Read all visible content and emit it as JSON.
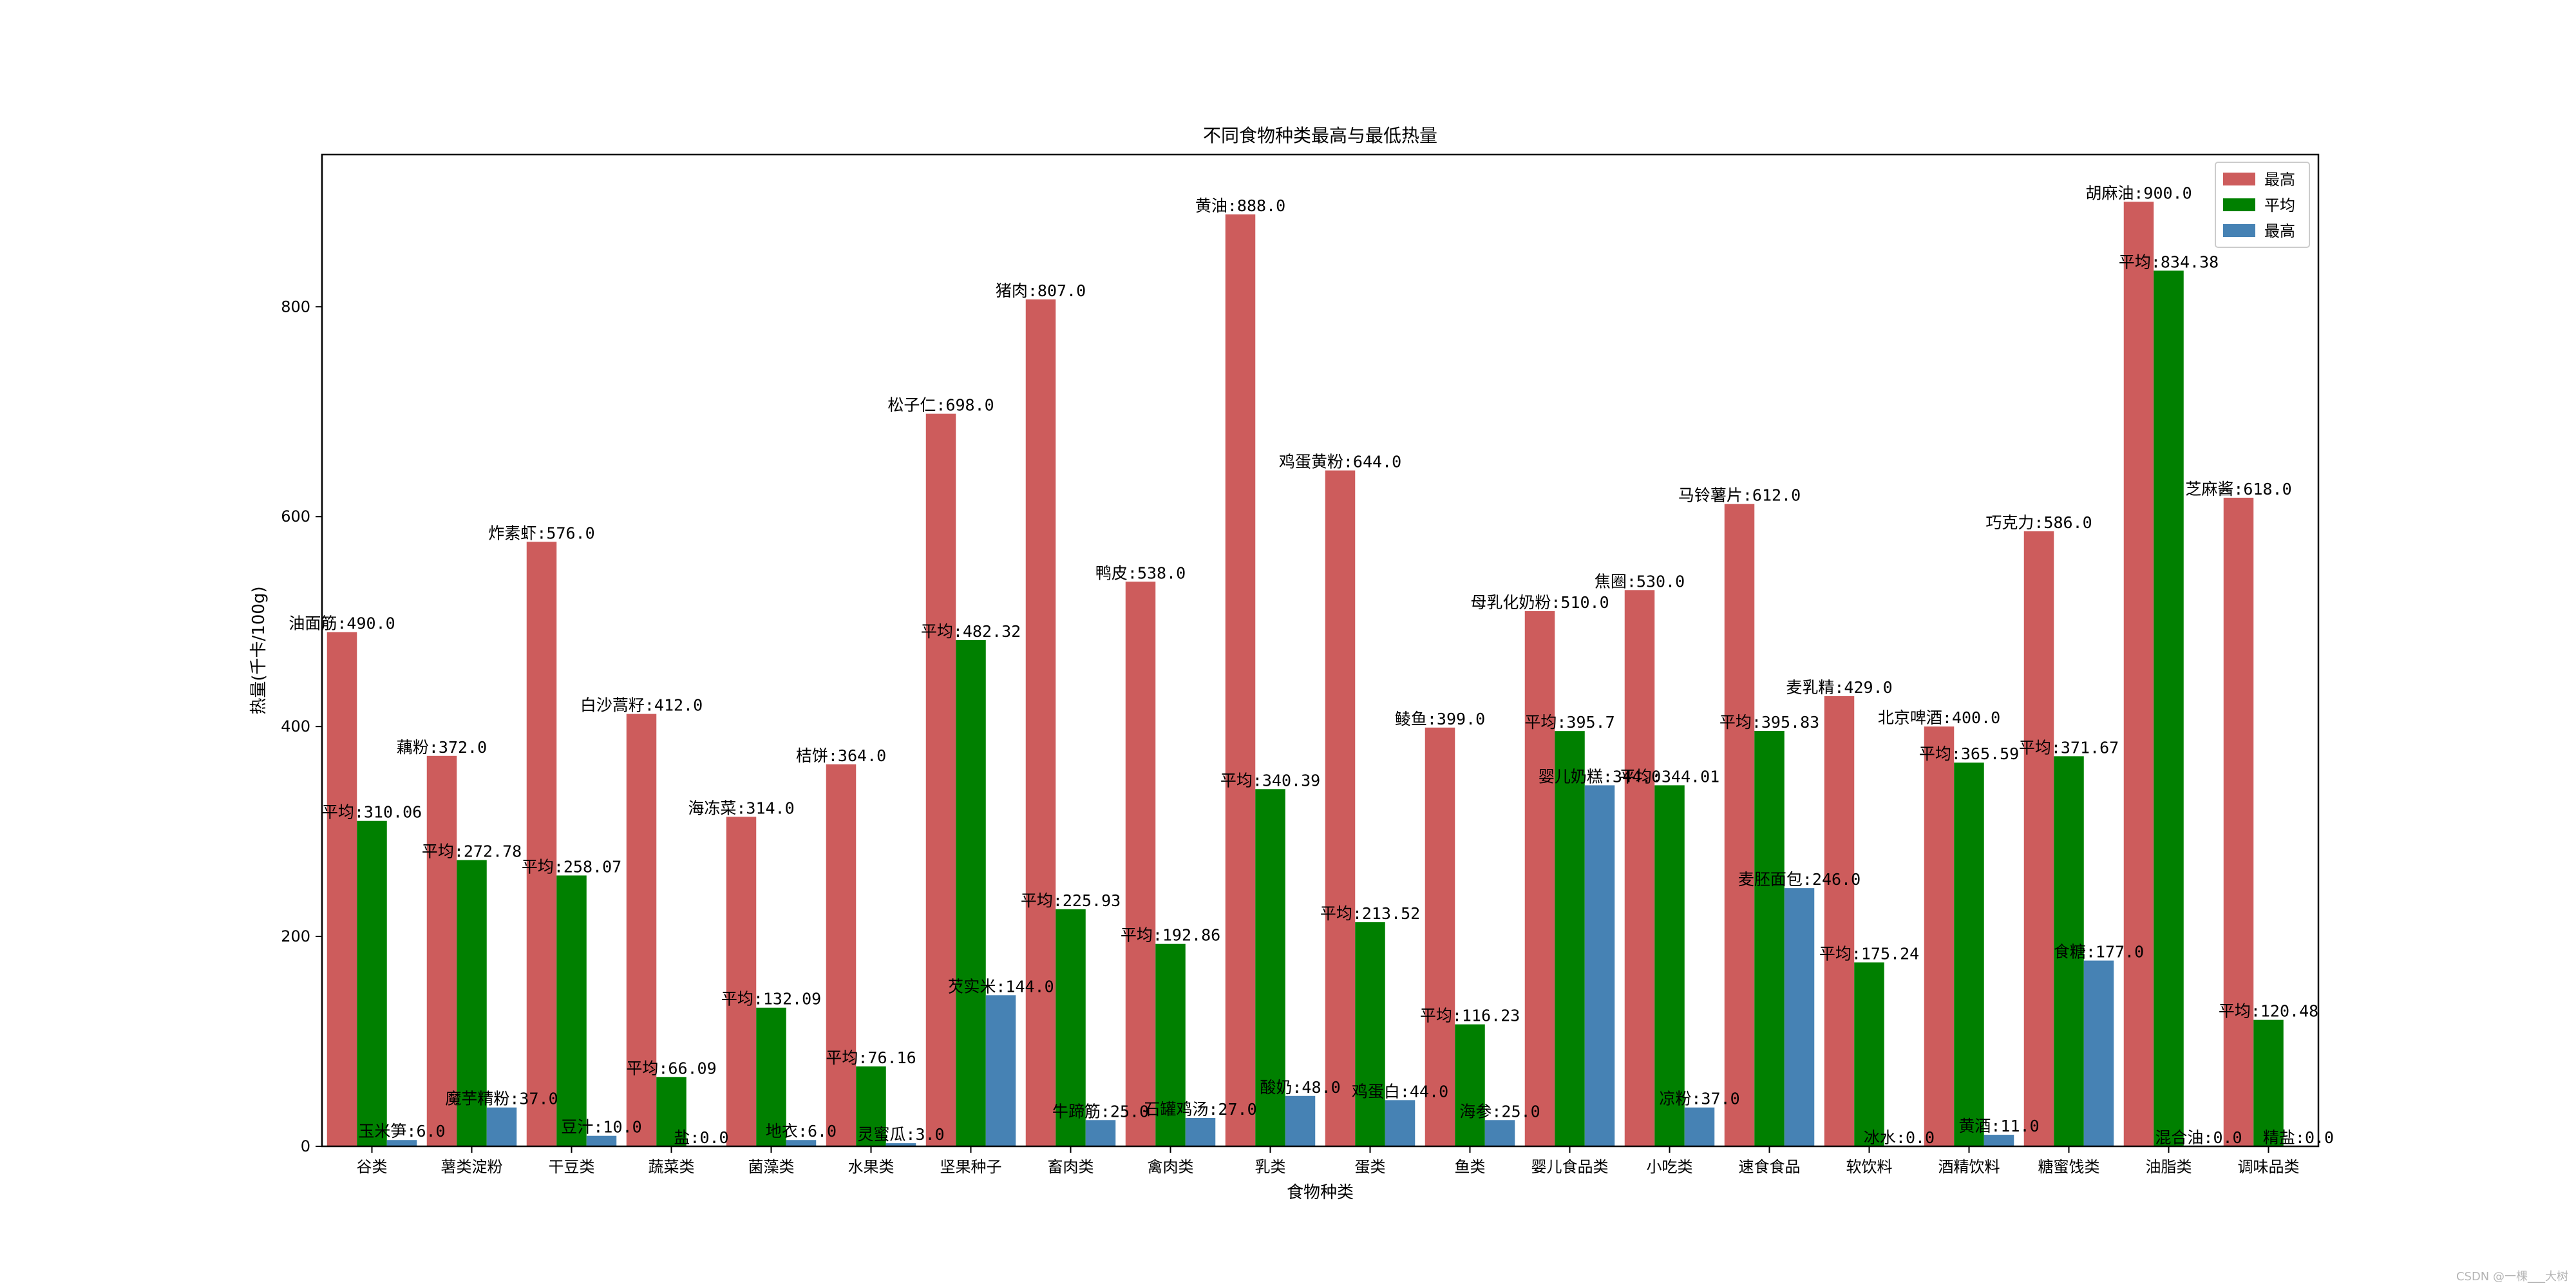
{
  "chart_data": {
    "type": "bar",
    "title": "不同食物种类最高与最低热量",
    "xlabel": "食物种类",
    "ylabel": "热量(千卡/100g)",
    "ylim": [
      0,
      945
    ],
    "yticks": [
      0,
      200,
      400,
      600,
      800
    ],
    "grid": false,
    "legend_position": "top-right",
    "categories": [
      "谷类",
      "薯类淀粉",
      "干豆类",
      "蔬菜类",
      "菌藻类",
      "水果类",
      "坚果种子",
      "畜肉类",
      "禽肉类",
      "乳类",
      "蛋类",
      "鱼类",
      "婴儿食品类",
      "小吃类",
      "速食食品",
      "软饮料",
      "酒精饮料",
      "糖蜜饯类",
      "油脂类",
      "调味品类"
    ],
    "series": [
      {
        "name": "最高",
        "color": "#cd5c5c",
        "values": [
          490.0,
          372.0,
          576.0,
          412.0,
          314.0,
          364.0,
          698.0,
          807.0,
          538.0,
          888.0,
          644.0,
          399.0,
          510.0,
          530.0,
          612.0,
          429.0,
          400.0,
          586.0,
          900.0,
          618.0
        ],
        "labels": [
          "油面筋:490.0",
          "藕粉:372.0",
          "炸素虾:576.0",
          "白沙蒿籽:412.0",
          "海冻菜:314.0",
          "桔饼:364.0",
          "松子仁:698.0",
          "猪肉:807.0",
          "鸭皮:538.0",
          "黄油:888.0",
          "鸡蛋黄粉:644.0",
          "鲮鱼:399.0",
          "母乳化奶粉:510.0",
          "焦圈:530.0",
          "马铃薯片:612.0",
          "麦乳精:429.0",
          "北京啤酒:400.0",
          "巧克力:586.0",
          "胡麻油:900.0",
          "芝麻酱:618.0"
        ]
      },
      {
        "name": "平均",
        "color": "#008000",
        "values": [
          310.06,
          272.78,
          258.07,
          66.09,
          132.09,
          76.16,
          482.32,
          225.93,
          192.86,
          340.39,
          213.52,
          116.23,
          395.7,
          344.01,
          395.83,
          175.24,
          365.59,
          371.67,
          834.38,
          120.48
        ],
        "labels": [
          "平均:310.06",
          "平均:272.78",
          "平均:258.07",
          "平均:66.09",
          "平均:132.09",
          "平均:76.16",
          "平均:482.32",
          "平均:225.93",
          "平均:192.86",
          "平均:340.39",
          "平均:213.52",
          "平均:116.23",
          "平均:395.7",
          "平均:344.01",
          "平均:395.83",
          "平均:175.24",
          "平均:365.59",
          "平均:371.67",
          "平均:834.38",
          "平均:120.48"
        ]
      },
      {
        "name": "最高",
        "color": "#4682b4",
        "values": [
          6.0,
          37.0,
          10.0,
          0.0,
          6.0,
          3.0,
          144.0,
          25.0,
          27.0,
          48.0,
          44.0,
          25.0,
          344.0,
          37.0,
          246.0,
          0.0,
          11.0,
          177.0,
          0.0,
          0.0
        ],
        "labels": [
          "玉米笋:6.0",
          "魔芋精粉:37.0",
          "豆汁:10.0",
          "盐:0.0",
          "地衣:6.0",
          "灵蜜瓜:3.0",
          "芡实米:144.0",
          "牛蹄筋:25.0",
          "石罐鸡汤:27.0",
          "酸奶:48.0",
          "鸡蛋白:44.0",
          "海参:25.0",
          "婴儿奶糕:344.0",
          "凉粉:37.0",
          "麦胚面包:246.0",
          "冰水:0.0",
          "黄酒:11.0",
          "食糖:177.0",
          "混合油:0.0",
          "精盐:0.0"
        ]
      }
    ]
  },
  "watermark": "CSDN @一棵___大树"
}
